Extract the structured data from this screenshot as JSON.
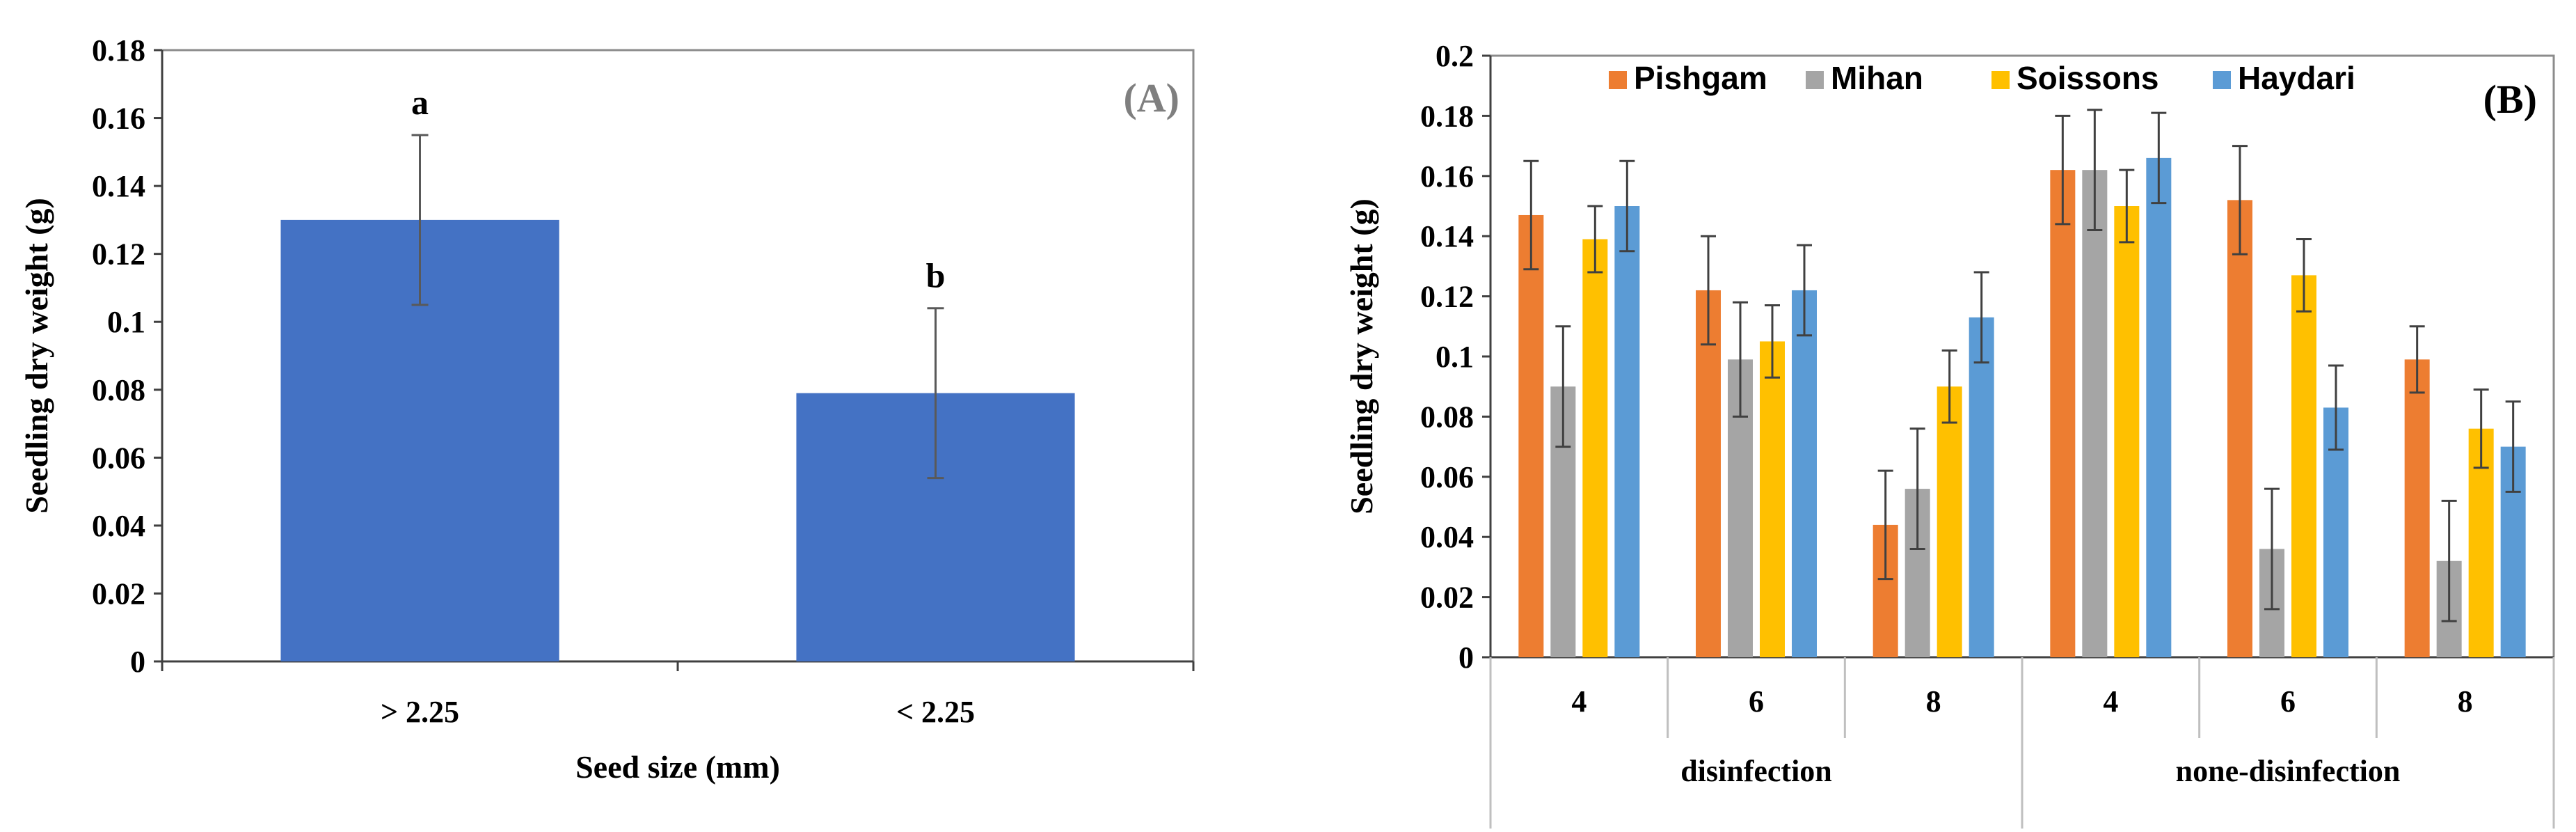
{
  "chart_data": [
    {
      "type": "bar",
      "panel_label": "(A)",
      "xlabel": "Seed size (mm)",
      "ylabel": "Seedling dry weight (g)",
      "ylim": [
        0,
        0.18
      ],
      "yticks": [
        "0",
        "0.02",
        "0.04",
        "0.06",
        "0.08",
        "0.1",
        "0.12",
        "0.14",
        "0.16",
        "0.18"
      ],
      "categories": [
        "> 2.25",
        "< 2.25"
      ],
      "values": [
        0.13,
        0.079
      ],
      "errors": [
        0.025,
        0.025
      ],
      "letters": [
        "a",
        "b"
      ],
      "color": "#4472C4",
      "grid": false
    },
    {
      "type": "bar",
      "panel_label": "(B)",
      "xlabel": "",
      "ylabel": "Seedling dry weight (g)",
      "ylim": [
        0,
        0.2
      ],
      "yticks": [
        "0",
        "0.02",
        "0.04",
        "0.06",
        "0.08",
        "0.1",
        "0.12",
        "0.14",
        "0.16",
        "0.18",
        "0.2"
      ],
      "groups": [
        {
          "name": "disinfection",
          "categories": [
            "4",
            "6",
            "8"
          ]
        },
        {
          "name": "none-disinfection",
          "categories": [
            "4",
            "6",
            "8"
          ]
        }
      ],
      "legend_position": "top",
      "series": [
        {
          "name": "Pishgam",
          "color": "#ED7D31",
          "values": [
            0.147,
            0.122,
            0.044,
            0.162,
            0.152,
            0.099
          ],
          "errors": [
            0.018,
            0.018,
            0.018,
            0.018,
            0.018,
            0.011
          ]
        },
        {
          "name": "Mihan",
          "color": "#A5A5A5",
          "values": [
            0.09,
            0.099,
            0.056,
            0.162,
            0.036,
            0.032
          ],
          "errors": [
            0.02,
            0.019,
            0.02,
            0.02,
            0.02,
            0.02
          ]
        },
        {
          "name": "Soissons",
          "color": "#FFC000",
          "values": [
            0.139,
            0.105,
            0.09,
            0.15,
            0.127,
            0.076
          ],
          "errors": [
            0.011,
            0.012,
            0.012,
            0.012,
            0.012,
            0.013
          ]
        },
        {
          "name": "Haydari",
          "color": "#5B9BD5",
          "values": [
            0.15,
            0.122,
            0.113,
            0.166,
            0.083,
            0.07
          ],
          "errors": [
            0.015,
            0.015,
            0.015,
            0.015,
            0.014,
            0.015
          ]
        }
      ],
      "grid": false
    }
  ]
}
